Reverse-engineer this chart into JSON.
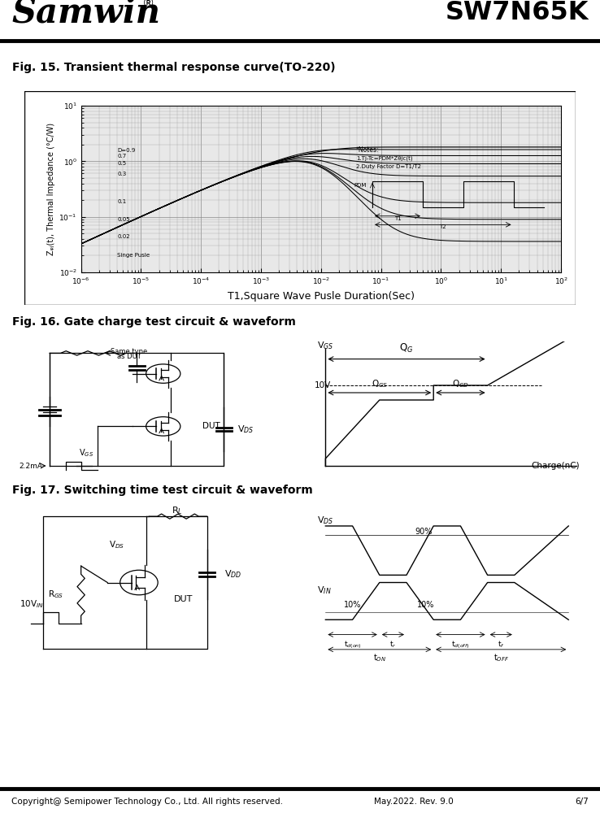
{
  "title_company": "Samwin",
  "title_reg": "®",
  "title_part": "SW7N65K",
  "fig15_title": "Fig. 15. Transient thermal response curve(TO-220)",
  "fig16_title": "Fig. 16. Gate charge test circuit & waveform",
  "fig17_title": "Fig. 17. Switching time test circuit & waveform",
  "footer_left": "Copyright@ Semipower Technology Co., Ltd. All rights reserved.",
  "footer_mid": "May.2022. Rev. 9.0",
  "footer_right": "6/7",
  "bg_color": "#ffffff"
}
